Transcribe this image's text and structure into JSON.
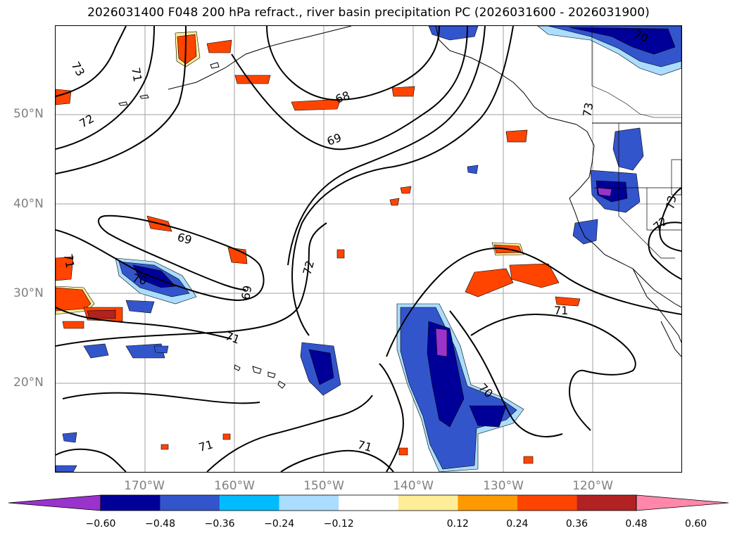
{
  "title": "2026031400 F048 200 hPa refract., river basin precipitation PC (2026031600 - 2026031900)",
  "map": {
    "lat_labels": [
      "50°N",
      "40°N",
      "30°N",
      "20°N"
    ],
    "lon_labels": [
      "170°W",
      "160°W",
      "150°W",
      "140°W",
      "130°W",
      "120°W"
    ],
    "contour_labels": [
      "73",
      "71",
      "72",
      "68",
      "69",
      "69",
      "69",
      "70",
      "71",
      "72",
      "71",
      "71",
      "70",
      "71",
      "71",
      "70",
      "73",
      "73",
      "72"
    ],
    "colors": {
      "coast": "#000000",
      "grid": "#a0a0a0"
    }
  },
  "colorbar": {
    "tick_labels": [
      "−0.60",
      "−0.48",
      "−0.36",
      "−0.24",
      "−0.12",
      "0.12",
      "0.24",
      "0.36",
      "0.48",
      "0.60"
    ],
    "bins": [
      {
        "color": "#9933cc",
        "label": "< -0.60"
      },
      {
        "color": "#000099",
        "label": "-0.60 to -0.48"
      },
      {
        "color": "#3355cc",
        "label": "-0.48 to -0.36"
      },
      {
        "color": "#00bbff",
        "label": "-0.36 to -0.24"
      },
      {
        "color": "#aaddff",
        "label": "-0.24 to -0.12"
      },
      {
        "color": "#ffffff",
        "label": "-0.12 to 0.12"
      },
      {
        "color": "#ffee99",
        "label": "0.12 to 0.24"
      },
      {
        "color": "#ff9900",
        "label": "0.24 to 0.36"
      },
      {
        "color": "#ff4400",
        "label": "0.36 to 0.48"
      },
      {
        "color": "#b22222",
        "label": "0.48 to 0.60"
      },
      {
        "color": "#ff88aa",
        "label": "> 0.60"
      }
    ]
  }
}
